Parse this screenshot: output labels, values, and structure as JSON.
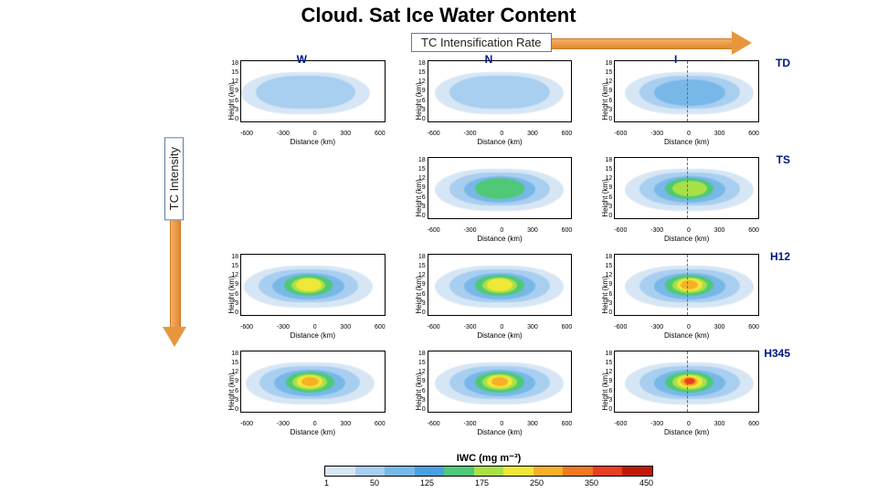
{
  "title": {
    "text": "Cloud. Sat Ice Water Content",
    "fontsize": 22
  },
  "arrows": {
    "grad_top": "#f5b165",
    "grad_bot": "#e0872e",
    "horizontal_label": "TC Intensification Rate",
    "vertical_label": "TC Intensity"
  },
  "grid": {
    "cols": [
      "W",
      "N",
      "I"
    ],
    "rows": [
      "TD",
      "TS",
      "H12",
      "H345"
    ],
    "xlabel": "Distance (km)",
    "ylabel": "Height (km)",
    "xlim": [
      -750,
      750
    ],
    "ylim": [
      0,
      18
    ],
    "xticks": [
      "-600",
      "-300",
      "0",
      "300",
      "600"
    ],
    "yticks": [
      "0",
      "3",
      "6",
      "9",
      "12",
      "15",
      "18"
    ],
    "panel_bg": "#ffffff",
    "axis_fontsize": 8,
    "tick_fontsize": 7,
    "header_color": "#001680",
    "vline_color": "#e84020",
    "panels": [
      {
        "row": 0,
        "col": 0,
        "show": true,
        "vline": false,
        "intensity": 1,
        "xoff": -5
      },
      {
        "row": 0,
        "col": 1,
        "show": true,
        "vline": false,
        "intensity": 1,
        "xoff": 0
      },
      {
        "row": 0,
        "col": 2,
        "show": true,
        "vline": true,
        "intensity": 1.2,
        "xoff": 2
      },
      {
        "row": 1,
        "col": 0,
        "show": false
      },
      {
        "row": 1,
        "col": 1,
        "show": true,
        "vline": false,
        "intensity": 2,
        "xoff": 0
      },
      {
        "row": 1,
        "col": 2,
        "show": true,
        "vline": true,
        "intensity": 2.2,
        "xoff": 2
      },
      {
        "row": 2,
        "col": 0,
        "show": true,
        "vline": false,
        "intensity": 2.5,
        "xoff": -3
      },
      {
        "row": 2,
        "col": 1,
        "show": true,
        "vline": false,
        "intensity": 2.5,
        "xoff": 0
      },
      {
        "row": 2,
        "col": 2,
        "show": true,
        "vline": true,
        "intensity": 3,
        "xoff": 2
      },
      {
        "row": 3,
        "col": 0,
        "show": true,
        "vline": false,
        "intensity": 3,
        "xoff": -2
      },
      {
        "row": 3,
        "col": 1,
        "show": true,
        "vline": false,
        "intensity": 3.2,
        "xoff": 0
      },
      {
        "row": 3,
        "col": 2,
        "show": true,
        "vline": true,
        "intensity": 3.6,
        "xoff": 2
      }
    ]
  },
  "colorbar": {
    "title": "IWC (mg m⁻³)",
    "ticks": [
      "1",
      "50",
      "125",
      "175",
      "250",
      "350",
      "450"
    ],
    "colors": [
      "#d6e6f5",
      "#a8cef0",
      "#78b8e8",
      "#4aa0df",
      "#4fc878",
      "#a8e048",
      "#f0e838",
      "#f5b028",
      "#f07820",
      "#e84020",
      "#c01808"
    ]
  },
  "contour_colors": {
    "c1": "#d6e6f5",
    "c2": "#a8cef0",
    "c3": "#78b8e8",
    "c4": "#4fc878",
    "c5": "#a8e048",
    "c6": "#f0e838",
    "c7": "#f5b028",
    "c8": "#e84020"
  }
}
